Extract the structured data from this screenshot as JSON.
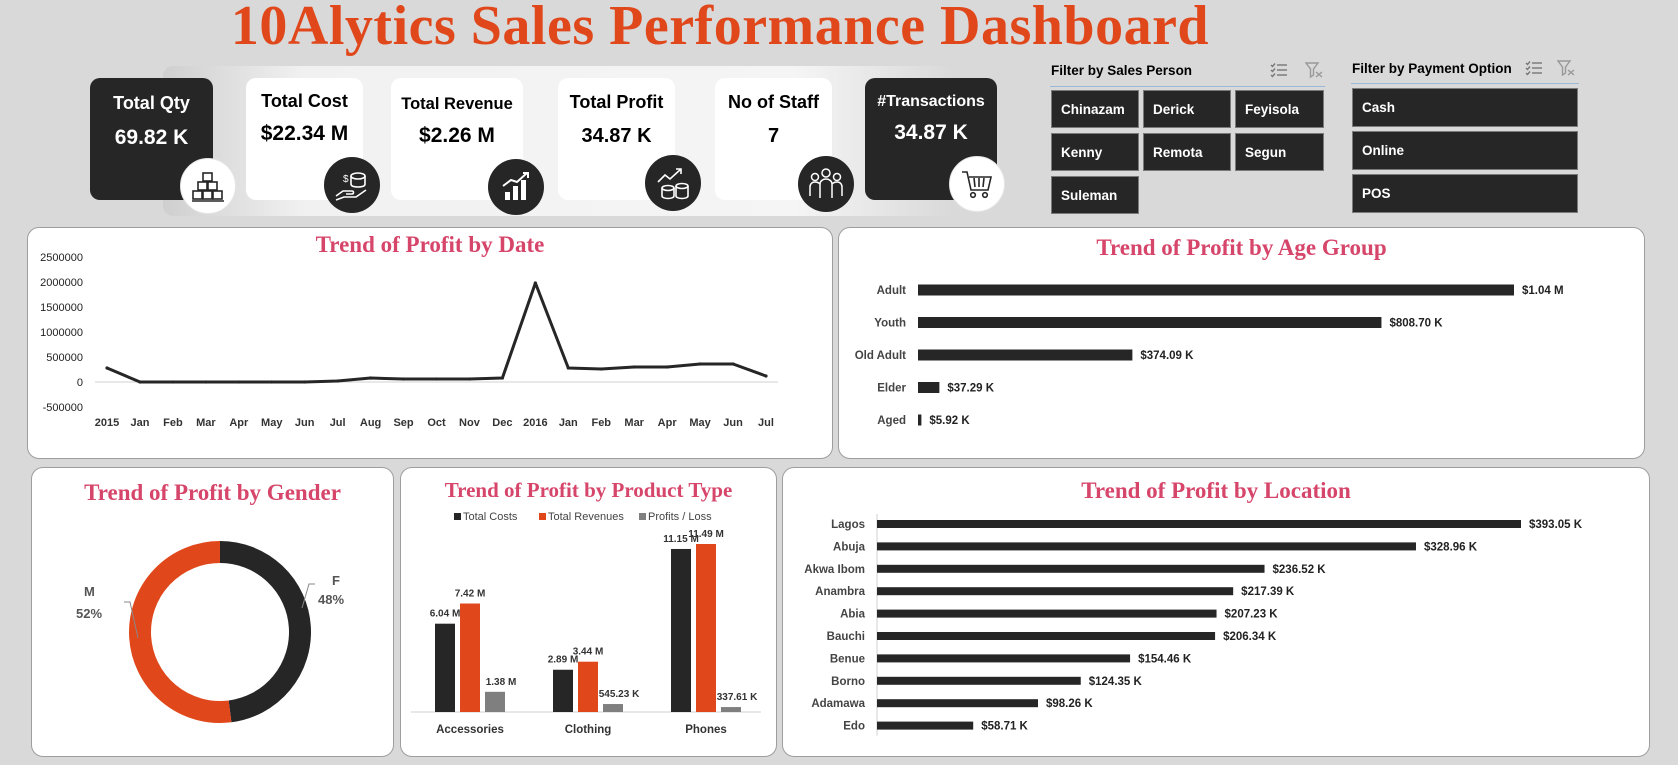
{
  "title": "10Alytics Sales Performance Dashboard",
  "kpis": [
    {
      "label": "Total Qty",
      "value": "69.82 K",
      "icon": "inventory-boxes-icon"
    },
    {
      "label": "Total Cost",
      "value": "$22.34 M",
      "icon": "money-hand-icon"
    },
    {
      "label": "Total Revenue",
      "value": "$2.26 M",
      "icon": "growth-bars-icon"
    },
    {
      "label": "Total Profit",
      "value": "34.87 K",
      "icon": "profit-coins-icon"
    },
    {
      "label": "No of Staff",
      "value": "7",
      "icon": "staff-group-icon"
    },
    {
      "label": "#Transactions",
      "value": "34.87 K",
      "icon": "shopping-cart-icon"
    }
  ],
  "slicers": {
    "sales_person": {
      "title": "Filter by Sales Person",
      "items": [
        "Chinazam",
        "Derick",
        "Feyisola",
        "Kenny",
        "Remota",
        "Segun",
        "Suleman"
      ]
    },
    "payment": {
      "title": "Filter by Payment Option",
      "items": [
        "Cash",
        "Online",
        "POS"
      ]
    }
  },
  "panels": {
    "date": "Trend of Profit by Date",
    "age": "Trend of Profit by Age Group",
    "gender": "Trend of Profit by Gender",
    "product": "Trend of Profit by Product Type",
    "location": "Trend of Profit by Location"
  },
  "colors": {
    "dark": "#262626",
    "orange": "#e0481b",
    "grey": "#7f7f7f",
    "title_pink": "#d6456a"
  },
  "chart_data": [
    {
      "id": "date",
      "type": "line",
      "title": "Trend of Profit by Date",
      "categories": [
        "2015",
        "Jan",
        "Feb",
        "Mar",
        "Apr",
        "May",
        "Jun",
        "Jul",
        "Aug",
        "Sep",
        "Oct",
        "Nov",
        "Dec",
        "2016",
        "Jan",
        "Feb",
        "Mar",
        "Apr",
        "May",
        "Jun",
        "Jul"
      ],
      "values": [
        280000,
        0,
        0,
        0,
        0,
        0,
        0,
        20000,
        80000,
        60000,
        60000,
        60000,
        80000,
        1980000,
        280000,
        260000,
        300000,
        300000,
        360000,
        360000,
        120000
      ],
      "ylim": [
        -500000,
        2500000
      ],
      "yticks": [
        "2500000",
        "2000000",
        "1500000",
        "1000000",
        "500000",
        "0",
        "-500000"
      ],
      "ytick_values": [
        2500000,
        2000000,
        1500000,
        1000000,
        500000,
        0,
        -500000
      ]
    },
    {
      "id": "age",
      "type": "bar",
      "title": "Trend of Profit by Age Group",
      "categories": [
        "Adult",
        "Youth",
        "Old Adult",
        "Elder",
        "Aged"
      ],
      "values": [
        1040000,
        808700,
        374090,
        37290,
        5920
      ],
      "labels": [
        "$1.04 M",
        "$808.70 K",
        "$374.09 K",
        "$37.29 K",
        "$5.92 K"
      ]
    },
    {
      "id": "gender",
      "type": "pie",
      "title": "Trend of Profit by Gender",
      "categories": [
        "F",
        "M"
      ],
      "values": [
        48,
        52
      ],
      "labels": [
        "48%",
        "52%"
      ]
    },
    {
      "id": "product",
      "type": "bar",
      "title": "Trend of Profit by Product Type",
      "categories": [
        "Accessories",
        "Clothing",
        "Phones"
      ],
      "series": [
        {
          "name": "Total Costs",
          "values": [
            6040000,
            2890000,
            11150000
          ],
          "labels": [
            "6.04 M",
            "2.89 M",
            "11.15 M"
          ]
        },
        {
          "name": "Total Revenues",
          "values": [
            7420000,
            3440000,
            11490000
          ],
          "labels": [
            "7.42 M",
            "3.44 M",
            "11.49 M"
          ]
        },
        {
          "name": "Profits / Loss",
          "values": [
            1380000,
            545230,
            337610
          ],
          "labels": [
            "1.38 M",
            "545.23 K",
            "337.61 K"
          ]
        }
      ]
    },
    {
      "id": "location",
      "type": "bar",
      "title": "Trend of Profit by Location",
      "categories": [
        "Lagos",
        "Abuja",
        "Akwa Ibom",
        "Anambra",
        "Abia",
        "Bauchi",
        "Benue",
        "Borno",
        "Adamawa",
        "Edo"
      ],
      "values": [
        393050,
        328960,
        236520,
        217390,
        207230,
        206340,
        154460,
        124350,
        98260,
        58710
      ],
      "labels": [
        "$393.05 K",
        "$328.96 K",
        "$236.52 K",
        "$217.39 K",
        "$207.23 K",
        "$206.34 K",
        "$154.46 K",
        "$124.35 K",
        "$98.26 K",
        "$58.71 K"
      ]
    }
  ]
}
